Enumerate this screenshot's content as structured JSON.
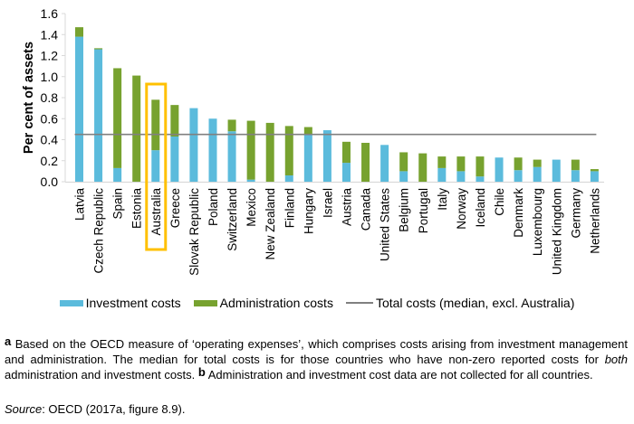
{
  "chart_data": {
    "type": "bar",
    "stacked": true,
    "title": "",
    "xlabel": "",
    "ylabel": "Per cent of assets",
    "ylim": [
      0,
      1.6
    ],
    "yticks": [
      "0.0",
      "0.2",
      "0.4",
      "0.6",
      "0.8",
      "1.0",
      "1.2",
      "1.4",
      "1.6"
    ],
    "ytick_values": [
      0,
      0.2,
      0.4,
      0.6,
      0.8,
      1.0,
      1.2,
      1.4,
      1.6
    ],
    "grid": false,
    "legend_position": "bottom",
    "categories": [
      "Latvia",
      "Czech Republic",
      "Spain",
      "Estonia",
      "Australia",
      "Greece",
      "Slovak Republic",
      "Poland",
      "Switzerland",
      "Mexico",
      "New Zealand",
      "Finland",
      "Hungary",
      "Israel",
      "Austria",
      "Canada",
      "United States",
      "Belgium",
      "Portugal",
      "Italy",
      "Norway",
      "Iceland",
      "Chile",
      "Denmark",
      "Luxembourg",
      "United Kingdom",
      "Germany",
      "Netherlands"
    ],
    "series": [
      {
        "name": "Investment costs",
        "color": "#5bbbdc",
        "values": [
          1.38,
          1.26,
          0.13,
          0.0,
          0.3,
          0.43,
          0.7,
          0.6,
          0.48,
          0.02,
          0.0,
          0.06,
          0.45,
          0.49,
          0.18,
          0.0,
          0.35,
          0.1,
          0.0,
          0.13,
          0.1,
          0.05,
          0.23,
          0.11,
          0.14,
          0.21,
          0.11,
          0.1
        ]
      },
      {
        "name": "Administration costs",
        "color": "#77a22f",
        "values": [
          0.09,
          0.01,
          0.95,
          1.01,
          0.48,
          0.3,
          0.0,
          0.0,
          0.11,
          0.56,
          0.56,
          0.47,
          0.07,
          0.0,
          0.2,
          0.37,
          0.0,
          0.18,
          0.27,
          0.11,
          0.14,
          0.19,
          0.0,
          0.12,
          0.07,
          0.0,
          0.1,
          0.02
        ]
      }
    ],
    "reference_line": {
      "name": "Total costs (median, excl. Australia)",
      "value": 0.45,
      "color": "#808080"
    },
    "highlight": {
      "category": "Australia",
      "color": "#ffc000"
    }
  },
  "legend": {
    "investment": "Investment costs",
    "administration": "Administration costs",
    "median": "Total costs (median, excl. Australia)"
  },
  "notes": {
    "a_marker": "a",
    "a_text_1": " Based on the OECD measure of ‘operating expenses’, which comprises costs arising from investment management and administration. The median for total costs is for those countries who have non-zero reported costs for ",
    "a_italic": "both",
    "a_text_2": " administration and investment costs. ",
    "b_marker": "b",
    "b_text": " Administration and investment cost data are not collected for all countries.",
    "source_label": "Source",
    "source_text": ": OECD (2017a, figure 8.9)."
  }
}
